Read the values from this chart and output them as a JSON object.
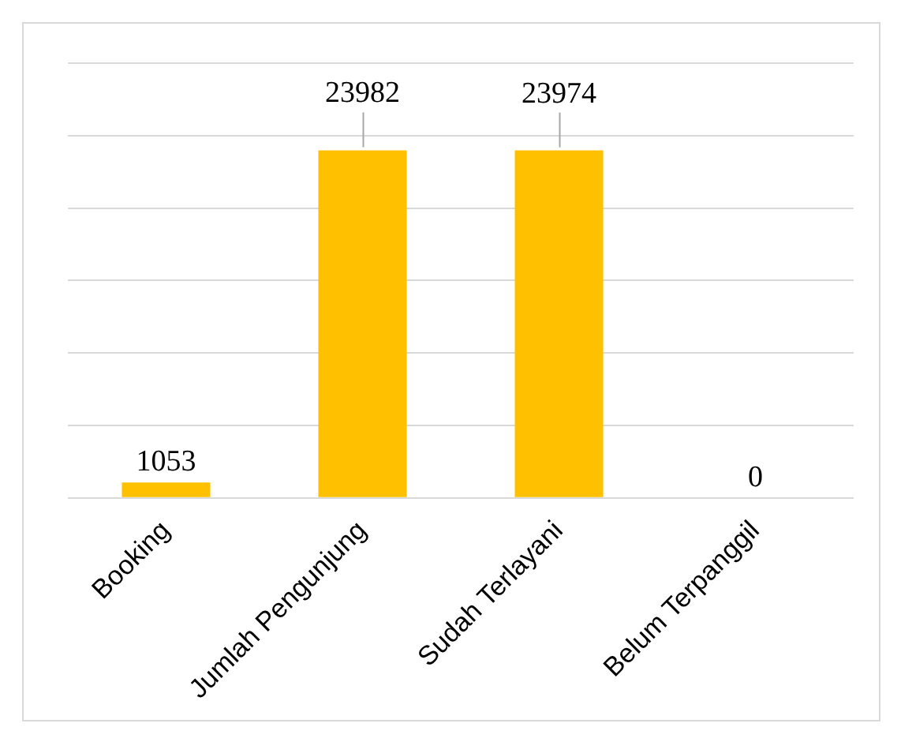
{
  "chart_data": {
    "type": "bar",
    "categories": [
      "Booking",
      "Jumlah Pengunjung",
      "Sudah Terlayani",
      "Belum Terpanggil"
    ],
    "values": [
      1053,
      23982,
      23974,
      0
    ],
    "color": "#ffc000",
    "ylim": [
      0,
      30000
    ],
    "yticks": [
      {
        "value": 0,
        "label": null
      },
      {
        "value": 5000,
        "label": null
      },
      {
        "value": 10000,
        "label": null
      },
      {
        "value": 15000,
        "label": null
      },
      {
        "value": 20000,
        "label": null
      },
      {
        "value": 25000,
        "label": null
      },
      {
        "value": 30000,
        "label": null
      }
    ],
    "grid": "y",
    "tick_labels": "x",
    "data_labels": true,
    "legend": false
  }
}
